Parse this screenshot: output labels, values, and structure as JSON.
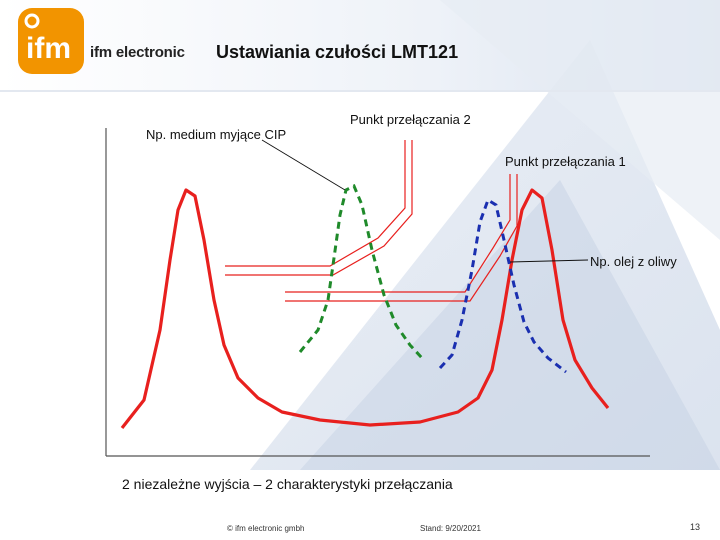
{
  "header": {
    "brand_name": "ifm electronic",
    "logo_text": "ifm",
    "title": "Ustawiania czułości LMT121"
  },
  "diagram": {
    "labels": {
      "cip_medium": "Np. medium myjące CIP",
      "switch_point_2": "Punkt przełączania 2",
      "switch_point_1": "Punkt przełączania 1",
      "oil": "Np. olej z oliwy"
    },
    "caption": "2 niezależne wyjścia – 2 charakterystyki przełączania",
    "colors": {
      "main_curve": "#e8201e",
      "cip_curve": "#1f8a2a",
      "oil_curve": "#1a2fb0",
      "axis": "#555555",
      "brand_orange": "#f29400"
    }
  },
  "footer": {
    "copyright": "© ifm electronic gmbh",
    "date": "Stand: 9/20/2021",
    "page": "13"
  }
}
